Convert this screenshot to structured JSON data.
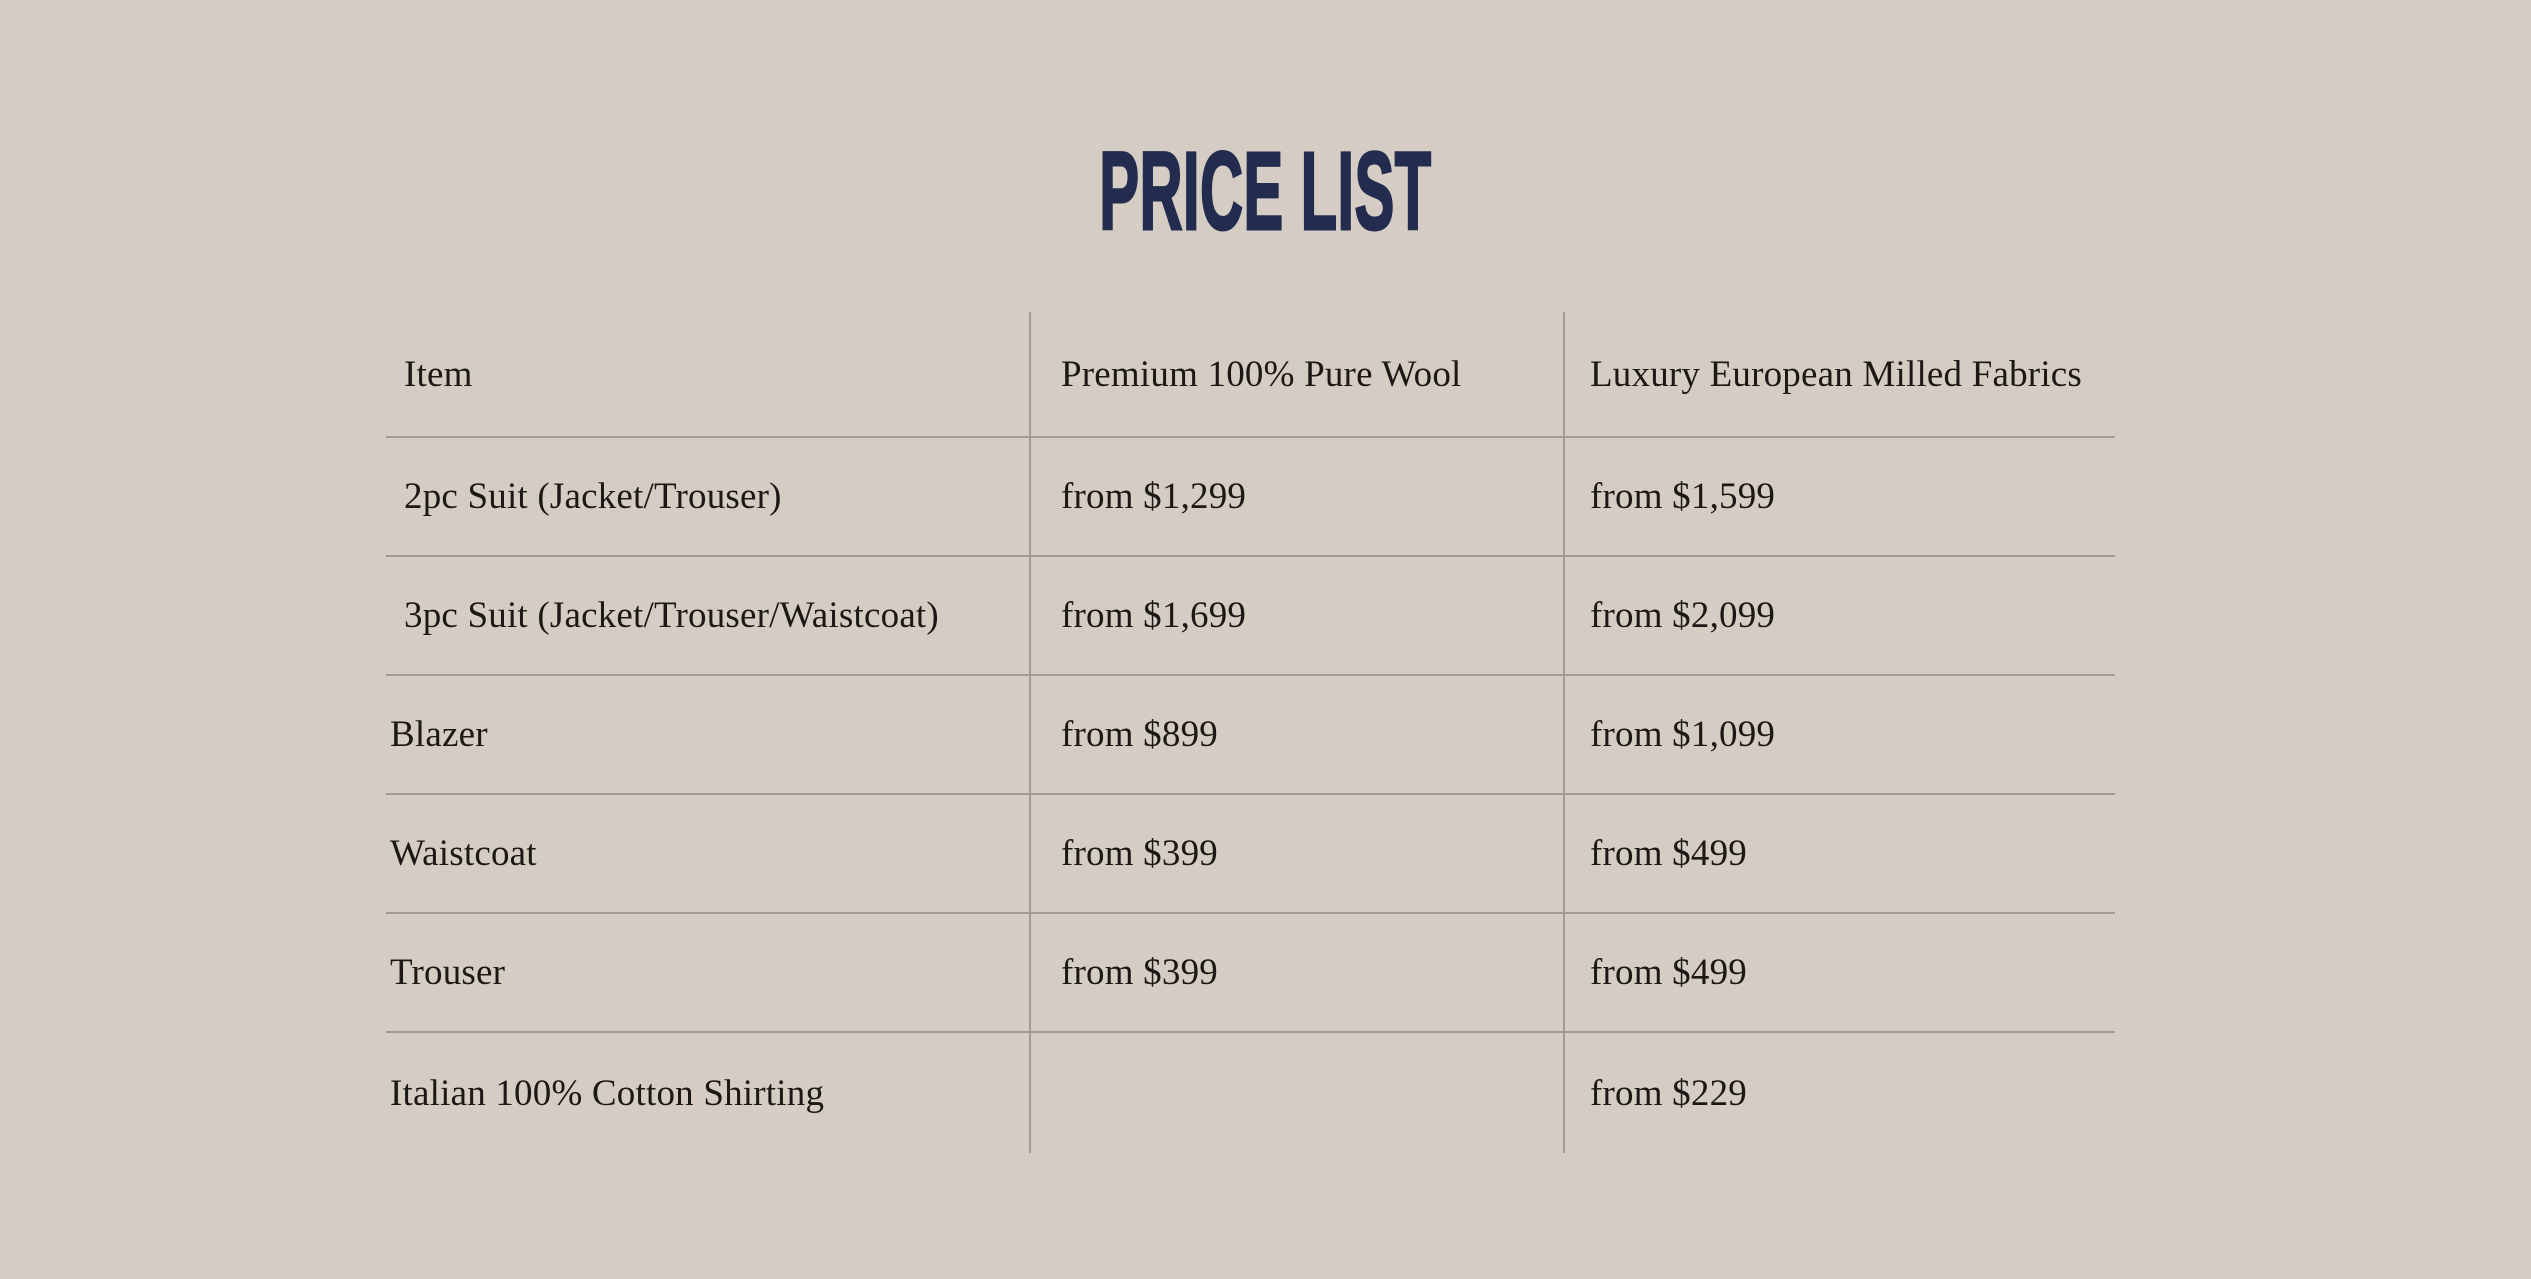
{
  "page": {
    "background_color": "#d5cdc4",
    "line_color": "#a19b92",
    "text_color": "#1b1815"
  },
  "title": {
    "text": "PRICE LIST",
    "color": "#232c4e"
  },
  "table": {
    "columns": [
      "Item",
      "Premium 100% Pure Wool",
      "Luxury European Milled Fabrics"
    ],
    "rows": [
      {
        "item": "2pc Suit (Jacket/Trouser)",
        "premium_wool": "from $1,299",
        "luxury_fabrics": "from $1,599"
      },
      {
        "item": "3pc Suit (Jacket/Trouser/Waistcoat)",
        "premium_wool": "from $1,699",
        "luxury_fabrics": "from $2,099"
      },
      {
        "item": "Blazer",
        "premium_wool": "from $899",
        "luxury_fabrics": "from $1,099"
      },
      {
        "item": "Waistcoat",
        "premium_wool": "from $399",
        "luxury_fabrics": "from $499"
      },
      {
        "item": "Trouser",
        "premium_wool": "from $399",
        "luxury_fabrics": "from $499"
      },
      {
        "item": "Italian 100% Cotton Shirting",
        "premium_wool": "",
        "luxury_fabrics": "from $229"
      }
    ]
  }
}
